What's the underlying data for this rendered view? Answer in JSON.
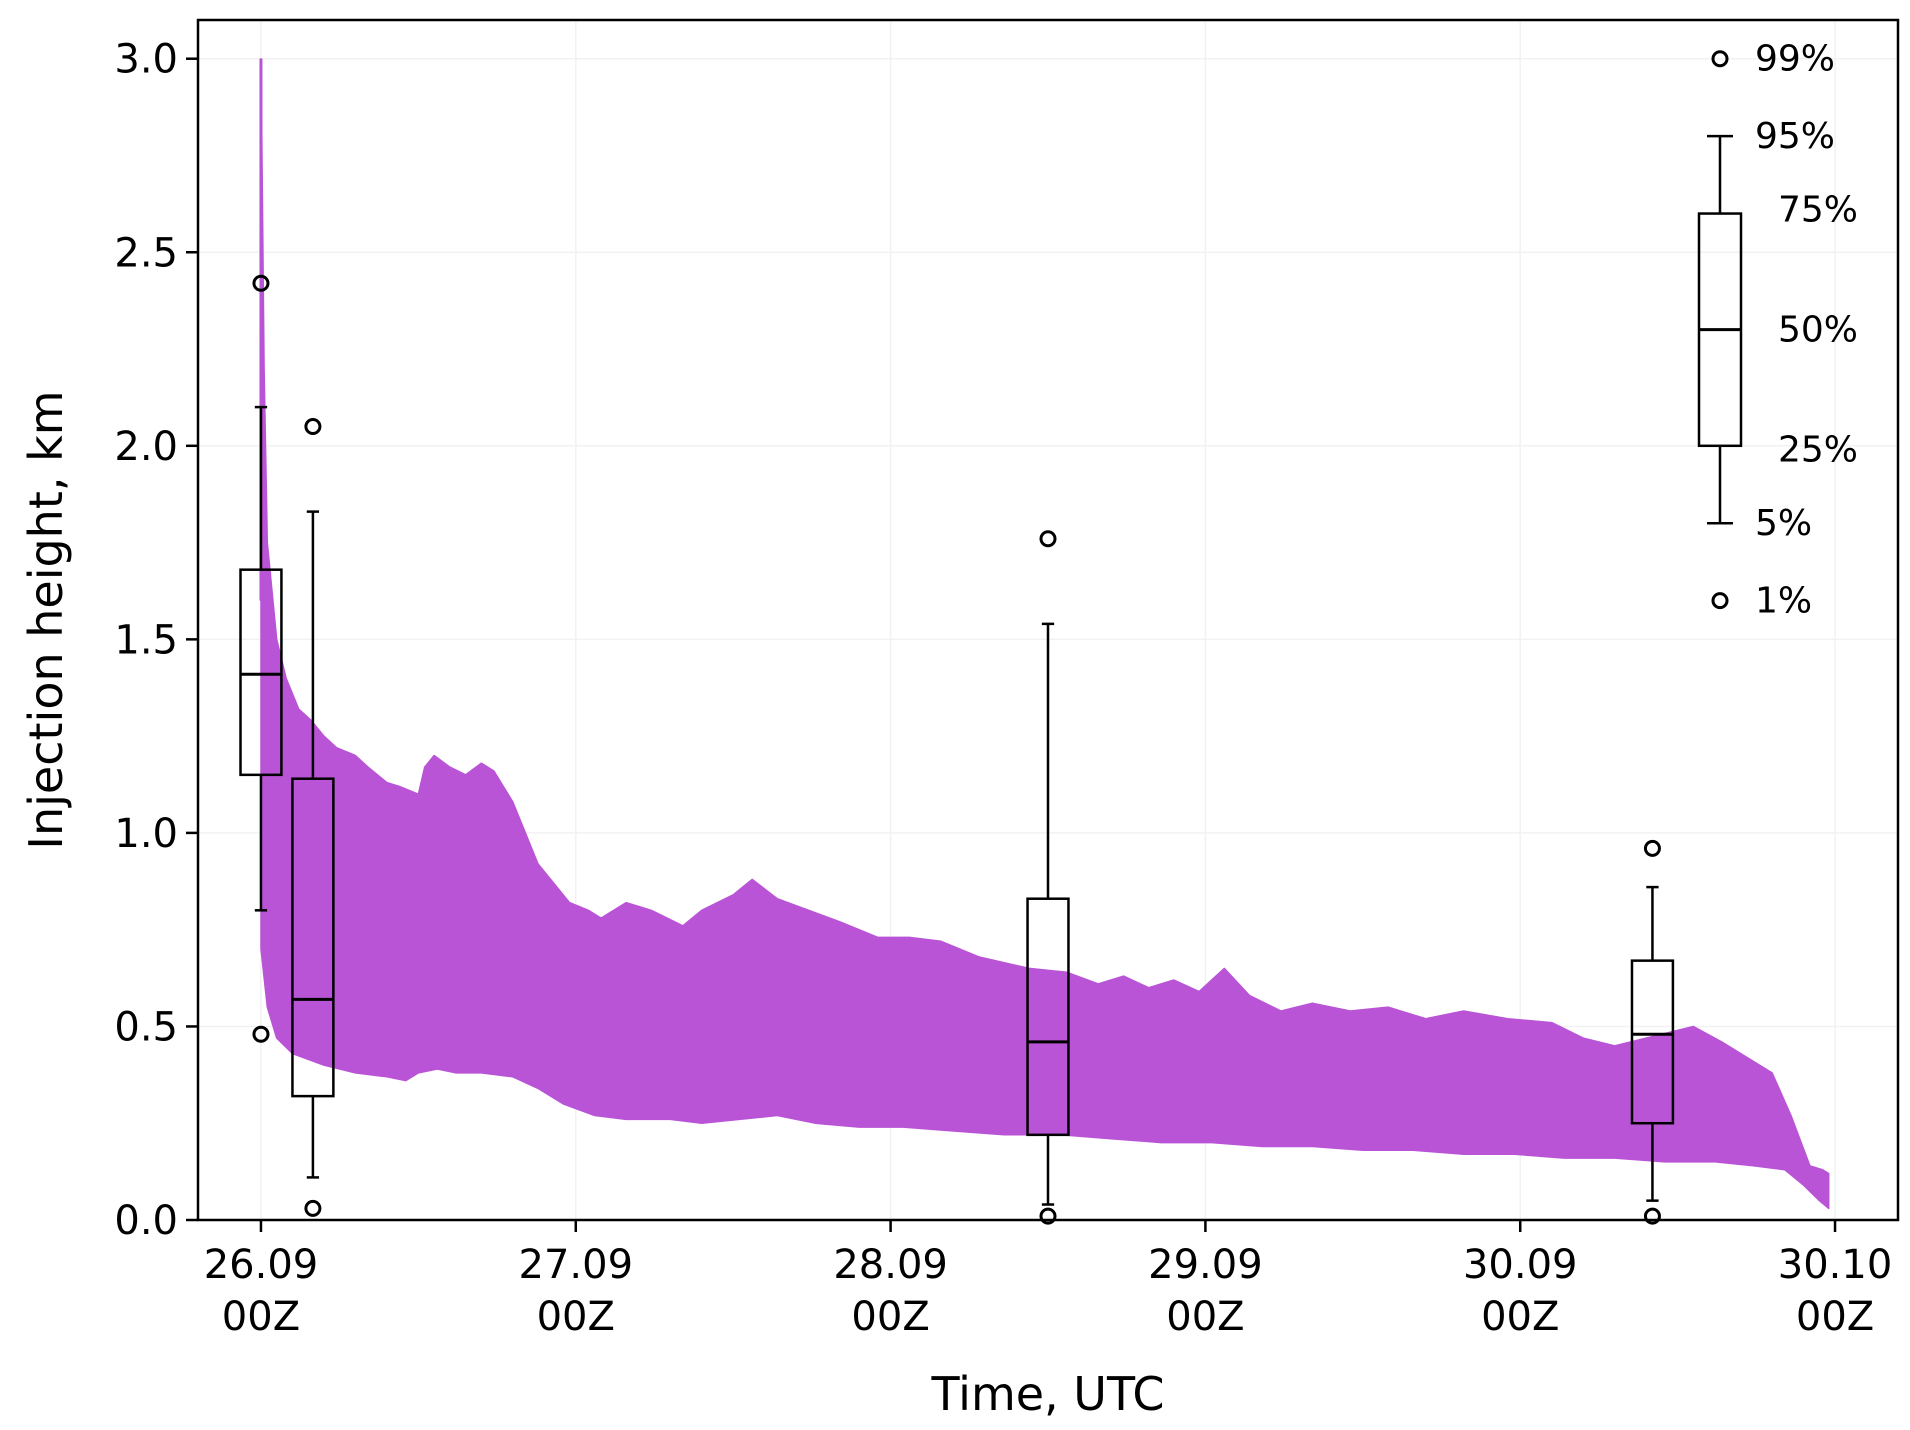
{
  "chart_data": {
    "type": "area",
    "title": "",
    "xlabel": "Time, UTC",
    "ylabel": "Injection height, km",
    "xlim": [
      -0.2,
      5.2
    ],
    "ylim": [
      0,
      3.1
    ],
    "x_ticks": [
      {
        "x": 0,
        "line1": "26.09",
        "line2": "00Z"
      },
      {
        "x": 1,
        "line1": "27.09",
        "line2": "00Z"
      },
      {
        "x": 2,
        "line1": "28.09",
        "line2": "00Z"
      },
      {
        "x": 3,
        "line1": "29.09",
        "line2": "00Z"
      },
      {
        "x": 4,
        "line1": "30.09",
        "line2": "00Z"
      },
      {
        "x": 5,
        "line1": "30.10",
        "line2": "00Z"
      }
    ],
    "y_ticks": [
      {
        "value": 0.0,
        "label": "0.0"
      },
      {
        "value": 0.5,
        "label": "0.5"
      },
      {
        "value": 1.0,
        "label": "1.0"
      },
      {
        "value": 1.5,
        "label": "1.5"
      },
      {
        "value": 2.0,
        "label": "2.0"
      },
      {
        "value": 2.5,
        "label": "2.5"
      },
      {
        "value": 3.0,
        "label": "3.0"
      }
    ],
    "grid": true,
    "band": {
      "color": "#b954d6",
      "upper": [
        [
          0.0,
          3.0
        ],
        [
          0.01,
          2.2
        ],
        [
          0.02,
          1.75
        ],
        [
          0.05,
          1.5
        ],
        [
          0.08,
          1.4
        ],
        [
          0.12,
          1.32
        ],
        [
          0.16,
          1.29
        ],
        [
          0.2,
          1.25
        ],
        [
          0.24,
          1.22
        ],
        [
          0.3,
          1.2
        ],
        [
          0.34,
          1.17
        ],
        [
          0.4,
          1.13
        ],
        [
          0.44,
          1.12
        ],
        [
          0.5,
          1.1
        ],
        [
          0.52,
          1.17
        ],
        [
          0.55,
          1.2
        ],
        [
          0.6,
          1.17
        ],
        [
          0.65,
          1.15
        ],
        [
          0.7,
          1.18
        ],
        [
          0.74,
          1.16
        ],
        [
          0.8,
          1.08
        ],
        [
          0.84,
          1.0
        ],
        [
          0.88,
          0.92
        ],
        [
          0.92,
          0.88
        ],
        [
          0.98,
          0.82
        ],
        [
          1.04,
          0.8
        ],
        [
          1.08,
          0.78
        ],
        [
          1.16,
          0.82
        ],
        [
          1.24,
          0.8
        ],
        [
          1.34,
          0.76
        ],
        [
          1.4,
          0.8
        ],
        [
          1.5,
          0.84
        ],
        [
          1.56,
          0.88
        ],
        [
          1.64,
          0.83
        ],
        [
          1.74,
          0.8
        ],
        [
          1.84,
          0.77
        ],
        [
          1.96,
          0.73
        ],
        [
          2.06,
          0.73
        ],
        [
          2.16,
          0.72
        ],
        [
          2.28,
          0.68
        ],
        [
          2.44,
          0.65
        ],
        [
          2.56,
          0.64
        ],
        [
          2.66,
          0.61
        ],
        [
          2.74,
          0.63
        ],
        [
          2.82,
          0.6
        ],
        [
          2.9,
          0.62
        ],
        [
          2.98,
          0.59
        ],
        [
          3.06,
          0.65
        ],
        [
          3.14,
          0.58
        ],
        [
          3.24,
          0.54
        ],
        [
          3.34,
          0.56
        ],
        [
          3.46,
          0.54
        ],
        [
          3.58,
          0.55
        ],
        [
          3.7,
          0.52
        ],
        [
          3.82,
          0.54
        ],
        [
          3.96,
          0.52
        ],
        [
          4.1,
          0.51
        ],
        [
          4.2,
          0.47
        ],
        [
          4.3,
          0.45
        ],
        [
          4.4,
          0.47
        ],
        [
          4.55,
          0.5
        ],
        [
          4.64,
          0.46
        ],
        [
          4.72,
          0.42
        ],
        [
          4.8,
          0.38
        ],
        [
          4.86,
          0.27
        ],
        [
          4.92,
          0.14
        ],
        [
          4.96,
          0.13
        ],
        [
          4.98,
          0.12
        ]
      ],
      "lower": [
        [
          0.0,
          0.7
        ],
        [
          0.02,
          0.55
        ],
        [
          0.05,
          0.47
        ],
        [
          0.1,
          0.43
        ],
        [
          0.2,
          0.4
        ],
        [
          0.3,
          0.38
        ],
        [
          0.4,
          0.37
        ],
        [
          0.46,
          0.36
        ],
        [
          0.5,
          0.38
        ],
        [
          0.56,
          0.39
        ],
        [
          0.62,
          0.38
        ],
        [
          0.7,
          0.38
        ],
        [
          0.8,
          0.37
        ],
        [
          0.88,
          0.34
        ],
        [
          0.96,
          0.3
        ],
        [
          1.06,
          0.27
        ],
        [
          1.16,
          0.26
        ],
        [
          1.3,
          0.26
        ],
        [
          1.4,
          0.25
        ],
        [
          1.52,
          0.26
        ],
        [
          1.64,
          0.27
        ],
        [
          1.76,
          0.25
        ],
        [
          1.9,
          0.24
        ],
        [
          2.04,
          0.24
        ],
        [
          2.2,
          0.23
        ],
        [
          2.36,
          0.22
        ],
        [
          2.54,
          0.22
        ],
        [
          2.7,
          0.21
        ],
        [
          2.86,
          0.2
        ],
        [
          3.02,
          0.2
        ],
        [
          3.18,
          0.19
        ],
        [
          3.34,
          0.19
        ],
        [
          3.5,
          0.18
        ],
        [
          3.66,
          0.18
        ],
        [
          3.82,
          0.17
        ],
        [
          3.98,
          0.17
        ],
        [
          4.14,
          0.16
        ],
        [
          4.3,
          0.16
        ],
        [
          4.46,
          0.15
        ],
        [
          4.62,
          0.15
        ],
        [
          4.74,
          0.14
        ],
        [
          4.84,
          0.13
        ],
        [
          4.9,
          0.09
        ],
        [
          4.95,
          0.05
        ],
        [
          4.98,
          0.03
        ]
      ]
    },
    "boxes": [
      {
        "x": 0.0,
        "width": 0.13,
        "q1": 1.15,
        "median": 1.41,
        "q3": 1.68,
        "whisker_low": 0.8,
        "whisker_high": 2.1,
        "flier_low": 0.48,
        "flier_high": 2.42
      },
      {
        "x": 0.165,
        "width": 0.13,
        "q1": 0.32,
        "median": 0.57,
        "q3": 1.14,
        "whisker_low": 0.11,
        "whisker_high": 1.83,
        "flier_low": 0.03,
        "flier_high": 2.05
      },
      {
        "x": 2.5,
        "width": 0.13,
        "q1": 0.22,
        "median": 0.46,
        "q3": 0.83,
        "whisker_low": 0.04,
        "whisker_high": 1.54,
        "flier_low": 0.01,
        "flier_high": 1.76
      },
      {
        "x": 4.42,
        "width": 0.13,
        "q1": 0.25,
        "median": 0.48,
        "q3": 0.67,
        "whisker_low": 0.05,
        "whisker_high": 0.86,
        "flier_low": 0.01,
        "flier_high": 0.96
      }
    ],
    "legend": {
      "placement": "top-right",
      "box": {
        "q1": 2.0,
        "median": 2.3,
        "q3": 2.6,
        "whisker_low": 1.8,
        "whisker_high": 2.8,
        "flier_low": 1.6,
        "flier_high": 3.0
      },
      "labels": {
        "p99": "99%",
        "p95": "95%",
        "p75": "75%",
        "p50": "50%",
        "p25": "25%",
        "p5": "5%",
        "p1": "1%"
      }
    }
  }
}
